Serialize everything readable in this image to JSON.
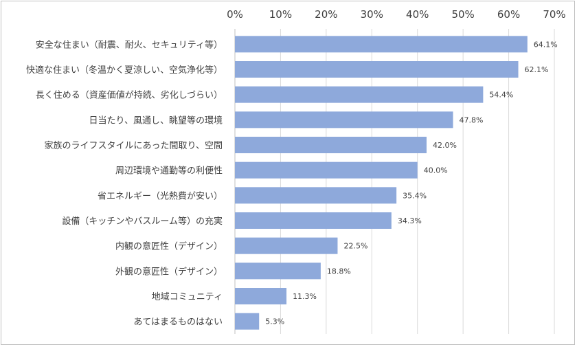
{
  "chart_data": {
    "type": "bar",
    "orientation": "horizontal",
    "title": "",
    "xlabel": "",
    "ylabel": "",
    "xlim": [
      0,
      70
    ],
    "x_ticks": [
      "0%",
      "10%",
      "20%",
      "30%",
      "40%",
      "50%",
      "60%",
      "70%"
    ],
    "x_axis_position": "top",
    "grid": true,
    "bar_color": "#8EA9DB",
    "categories": [
      "安全な住まい（耐震、耐火、セキュリティ等）",
      "快適な住まい（冬温かく夏涼しい、空気浄化等）",
      "長く住める（資産価値が持続、劣化しづらい）",
      "日当たり、風通し、眺望等の環境",
      "家族のライフスタイルにあった間取り、空間",
      "周辺環境や通勤等の利便性",
      "省エネルギー（光熱費が安い）",
      "設備（キッチンやバスルーム等）の充実",
      "内観の意匠性（デザイン）",
      "外観の意匠性（デザイン）",
      "地域コミュニティ",
      "あてはまるものはない"
    ],
    "values": [
      64.1,
      62.1,
      54.4,
      47.8,
      42.0,
      40.0,
      35.4,
      34.3,
      22.5,
      18.8,
      11.3,
      5.3
    ],
    "data_labels": [
      "64.1%",
      "62.1%",
      "54.4%",
      "47.8%",
      "42.0%",
      "40.0%",
      "35.4%",
      "34.3%",
      "22.5%",
      "18.8%",
      "11.3%",
      "5.3%"
    ]
  }
}
